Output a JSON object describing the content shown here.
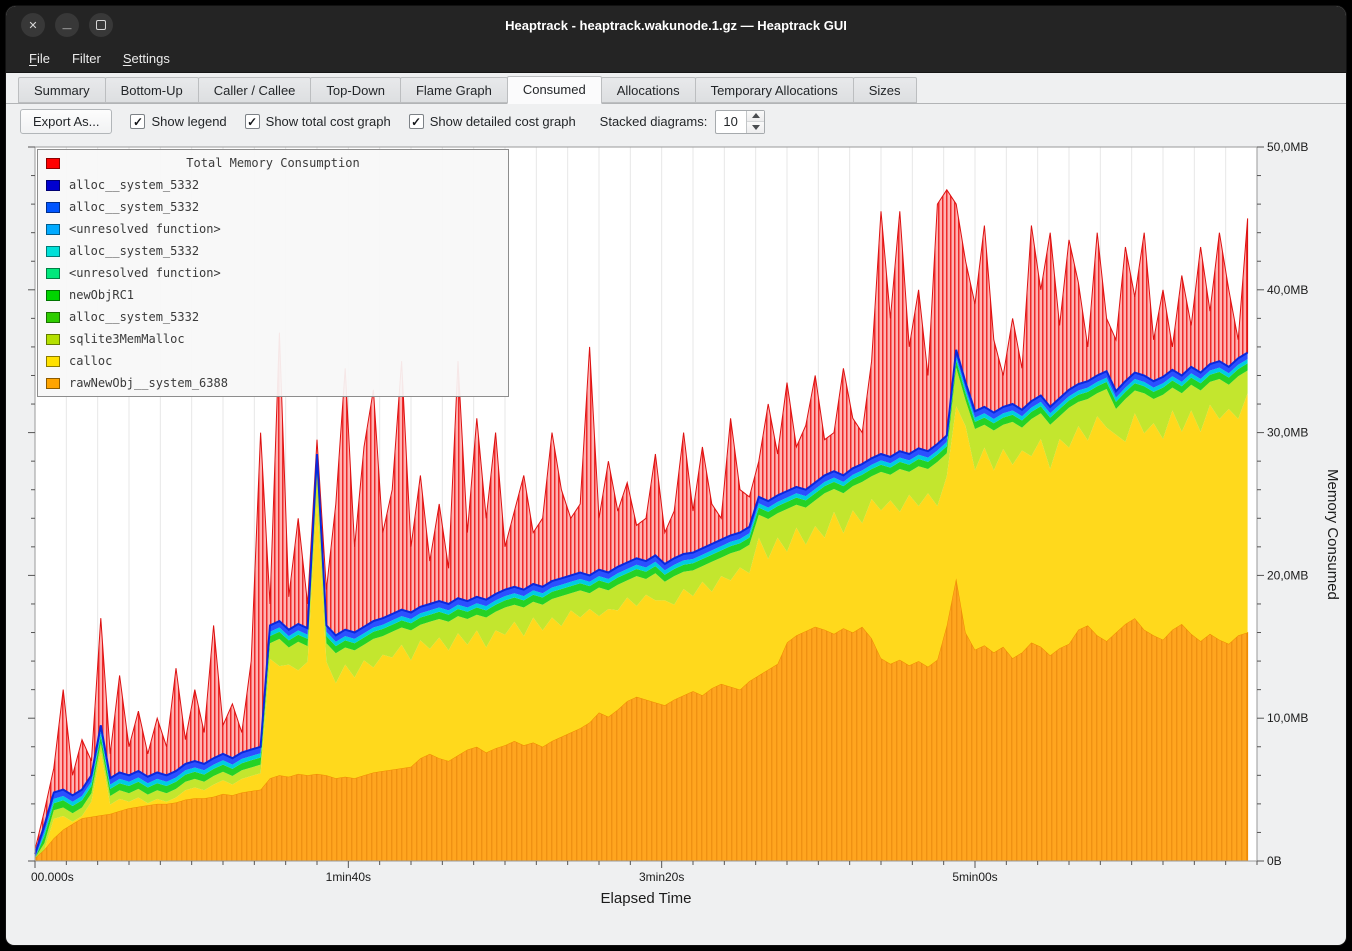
{
  "window": {
    "title": "Heaptrack - heaptrack.wakunode.1.gz — Heaptrack GUI"
  },
  "menubar": {
    "items": [
      {
        "label": "File",
        "underline": 0
      },
      {
        "label": "Filter",
        "underline": -1
      },
      {
        "label": "Settings",
        "underline": 0
      }
    ]
  },
  "tabs": {
    "active": "Consumed",
    "items": [
      "Summary",
      "Bottom-Up",
      "Caller / Callee",
      "Top-Down",
      "Flame Graph",
      "Consumed",
      "Allocations",
      "Temporary Allocations",
      "Sizes"
    ]
  },
  "toolbar": {
    "export_label": "Export As...",
    "checkboxes": [
      {
        "label": "Show legend",
        "checked": true
      },
      {
        "label": "Show total cost graph",
        "checked": true
      },
      {
        "label": "Show detailed cost graph",
        "checked": true
      }
    ],
    "stacked_label": "Stacked diagrams:",
    "stacked_value": "10"
  },
  "chart_data": {
    "type": "area",
    "title": "Total Memory Consumption",
    "xlabel": "Elapsed Time",
    "ylabel": "Memory Consumed",
    "x_range": [
      0,
      390
    ],
    "y_range": [
      0,
      50
    ],
    "x_ticks": [
      {
        "t": 0,
        "label": "00.000s"
      },
      {
        "t": 100,
        "label": "1min40s"
      },
      {
        "t": 200,
        "label": "3min20s"
      },
      {
        "t": 300,
        "label": "5min00s"
      }
    ],
    "y_ticks": [
      {
        "v": 0,
        "label": "0B"
      },
      {
        "v": 10,
        "label": "10,0MB"
      },
      {
        "v": 20,
        "label": "20,0MB"
      },
      {
        "v": 30,
        "label": "30,0MB"
      },
      {
        "v": 40,
        "label": "40,0MB"
      },
      {
        "v": 50,
        "label": "50,0MB"
      }
    ],
    "legend": [
      {
        "color": "#ff0000",
        "label": "Total Memory Consumption"
      },
      {
        "color": "#0000d0",
        "label": "alloc__system_5332"
      },
      {
        "color": "#0055ff",
        "label": "alloc__system_5332"
      },
      {
        "color": "#00aaff",
        "label": "<unresolved function>"
      },
      {
        "color": "#00e0d8",
        "label": "alloc__system_5332"
      },
      {
        "color": "#00e87c",
        "label": "<unresolved function>"
      },
      {
        "color": "#00d400",
        "label": "newObjRC1"
      },
      {
        "color": "#2ecc00",
        "label": "alloc__system_5332"
      },
      {
        "color": "#b4e000",
        "label": "sqlite3MemMalloc"
      },
      {
        "color": "#ffe100",
        "label": "calloc"
      },
      {
        "color": "#ffa400",
        "label": "rawNewObj__system_6388"
      }
    ],
    "colors": {
      "orange": "#ffa51e",
      "orange_stripe": "#f09112",
      "orange_edge": "#ef8b00",
      "yellow": "#ffd91c",
      "ygreen": "#c3e62e",
      "green": "#25d225",
      "cyan": "#00cde0",
      "blue": "#2b50ff",
      "blue_edge": "#0a28dc",
      "red_base": "#ffb2b2",
      "red_stripe": "#ee2a2a",
      "red_edge": "#dd1111",
      "grid": "#e7e7e7",
      "axis": "#555555"
    },
    "x": [
      0,
      3,
      6,
      9,
      12,
      15,
      18,
      21,
      24,
      27,
      30,
      33,
      36,
      39,
      42,
      45,
      48,
      51,
      54,
      57,
      60,
      63,
      66,
      69,
      72,
      75,
      78,
      81,
      84,
      87,
      90,
      93,
      96,
      99,
      102,
      105,
      108,
      111,
      114,
      117,
      120,
      123,
      126,
      129,
      132,
      135,
      138,
      141,
      144,
      147,
      150,
      153,
      156,
      159,
      162,
      165,
      168,
      171,
      174,
      177,
      180,
      183,
      186,
      189,
      192,
      195,
      198,
      201,
      204,
      207,
      210,
      213,
      216,
      219,
      222,
      225,
      228,
      231,
      234,
      237,
      240,
      243,
      246,
      249,
      252,
      255,
      258,
      261,
      264,
      267,
      270,
      273,
      276,
      279,
      282,
      285,
      288,
      291,
      294,
      297,
      300,
      303,
      306,
      309,
      312,
      315,
      318,
      321,
      324,
      327,
      330,
      333,
      336,
      339,
      342,
      345,
      348,
      351,
      354,
      357,
      360,
      363,
      366,
      369,
      372,
      375,
      378,
      381,
      384,
      387
    ],
    "series": {
      "band_thickness": {
        "blue": 0.45,
        "cyan": 0.3,
        "green": 0.5
      },
      "total": [
        0.8,
        3.5,
        6.5,
        12.0,
        6.0,
        8.5,
        7.0,
        17.0,
        7.5,
        13.0,
        8.0,
        10.5,
        7.5,
        10.0,
        8.0,
        13.5,
        8.5,
        12.0,
        9.0,
        16.5,
        9.5,
        11.0,
        9.0,
        14.0,
        30.0,
        18.0,
        37.0,
        18.5,
        24.0,
        18.0,
        29.5,
        19.0,
        25.0,
        34.5,
        22.0,
        29.0,
        33.0,
        23.0,
        26.0,
        35.0,
        22.0,
        27.0,
        21.0,
        25.0,
        20.5,
        35.0,
        23.0,
        31.0,
        24.0,
        30.0,
        22.0,
        24.5,
        27.0,
        23.0,
        24.0,
        30.0,
        26.0,
        24.0,
        25.0,
        36.0,
        24.0,
        28.0,
        24.5,
        26.5,
        23.5,
        24.0,
        28.5,
        23.0,
        24.5,
        30.0,
        24.5,
        29.0,
        25.0,
        24.0,
        31.0,
        26.0,
        25.5,
        28.0,
        32.0,
        28.5,
        33.5,
        29.0,
        30.5,
        34.0,
        29.5,
        30.0,
        34.5,
        31.0,
        30.0,
        35.0,
        45.5,
        38.0,
        45.5,
        36.0,
        40.0,
        34.0,
        46.0,
        47.0,
        46.0,
        42.0,
        39.0,
        44.5,
        36.5,
        34.0,
        38.0,
        34.5,
        44.5,
        40.0,
        44.0,
        37.5,
        43.5,
        40.5,
        36.0,
        44.0,
        38.0,
        36.5,
        43.0,
        39.5,
        44.0,
        36.5,
        40.0,
        36.0,
        41.0,
        37.5,
        43.0,
        38.5,
        44.0,
        40.0,
        36.5,
        45.0
      ],
      "solid_top": [
        0.5,
        2.5,
        4.8,
        5.0,
        4.6,
        5.0,
        6.0,
        9.5,
        5.8,
        6.2,
        6.0,
        6.3,
        5.9,
        6.2,
        6.0,
        6.3,
        6.8,
        7.0,
        6.8,
        7.2,
        7.5,
        7.2,
        7.6,
        7.8,
        8.0,
        16.5,
        16.8,
        16.2,
        16.6,
        16.3,
        28.5,
        16.5,
        15.8,
        16.2,
        16.0,
        16.4,
        16.8,
        17.0,
        17.3,
        17.6,
        17.4,
        17.8,
        18.0,
        18.2,
        18.0,
        18.4,
        18.2,
        18.5,
        18.3,
        18.7,
        19.0,
        19.2,
        19.0,
        19.4,
        19.2,
        19.6,
        19.8,
        20.0,
        20.2,
        20.0,
        20.4,
        20.2,
        20.6,
        20.9,
        21.2,
        21.0,
        21.4,
        20.8,
        21.2,
        21.5,
        21.6,
        21.9,
        22.2,
        22.5,
        22.8,
        23.0,
        23.4,
        25.5,
        25.2,
        25.6,
        25.9,
        26.2,
        26.0,
        26.5,
        27.0,
        27.3,
        27.0,
        27.5,
        27.8,
        28.2,
        28.5,
        28.3,
        28.7,
        28.5,
        28.9,
        28.7,
        29.2,
        29.8,
        35.8,
        33.5,
        31.5,
        31.8,
        31.4,
        31.8,
        32.0,
        31.6,
        32.2,
        32.6,
        31.8,
        32.4,
        33.0,
        33.4,
        33.6,
        34.0,
        34.3,
        32.9,
        33.6,
        34.2,
        34.0,
        33.6,
        33.9,
        34.4,
        34.0,
        34.6,
        34.2,
        34.8,
        35.0,
        34.6,
        35.2,
        35.6
      ],
      "orange_top": [
        0.2,
        0.8,
        1.6,
        2.2,
        2.6,
        3.0,
        3.1,
        3.2,
        3.3,
        3.5,
        3.7,
        3.8,
        3.9,
        4.0,
        4.0,
        4.1,
        4.3,
        4.4,
        4.4,
        4.5,
        4.7,
        4.6,
        4.8,
        4.9,
        5.0,
        5.8,
        6.0,
        5.9,
        6.1,
        6.0,
        6.1,
        6.0,
        5.8,
        5.9,
        5.8,
        6.0,
        6.2,
        6.3,
        6.4,
        6.5,
        6.6,
        7.2,
        7.5,
        7.2,
        7.0,
        7.4,
        7.8,
        8.0,
        7.6,
        7.9,
        8.1,
        8.4,
        8.1,
        8.3,
        8.0,
        8.4,
        8.7,
        9.0,
        9.3,
        9.7,
        10.4,
        10.1,
        10.6,
        11.2,
        11.5,
        11.3,
        11.1,
        10.9,
        11.3,
        11.6,
        11.9,
        11.6,
        12.1,
        12.4,
        12.2,
        12.0,
        12.6,
        13.0,
        13.4,
        13.8,
        15.3,
        15.8,
        16.1,
        16.4,
        16.2,
        15.9,
        16.3,
        16.0,
        16.4,
        15.6,
        14.2,
        13.8,
        14.1,
        13.7,
        14.0,
        13.6,
        14.1,
        16.5,
        19.8,
        16.0,
        14.8,
        15.1,
        14.6,
        15.0,
        14.2,
        14.6,
        15.3,
        15.0,
        14.4,
        14.9,
        15.2,
        16.2,
        16.5,
        15.8,
        15.4,
        16.0,
        16.6,
        17.0,
        16.2,
        15.8,
        15.5,
        16.2,
        16.6,
        15.9,
        15.4,
        15.9,
        15.5,
        15.2,
        15.8,
        16.0
      ],
      "ygreen_band": [
        0.6,
        0.6,
        0.6,
        0.6,
        0.6,
        0.6,
        0.6,
        0.6,
        0.6,
        0.6,
        0.6,
        0.6,
        0.6,
        0.6,
        0.6,
        0.6,
        0.6,
        0.6,
        0.6,
        0.6,
        0.6,
        0.6,
        0.6,
        0.6,
        0.6,
        1.1,
        1.9,
        1.2,
        2.0,
        1.1,
        1.8,
        1.3,
        2.1,
        1.2,
        1.9,
        1.1,
        2.0,
        1.3,
        1.8,
        1.2,
        2.1,
        1.1,
        1.9,
        1.3,
        2.0,
        1.2,
        1.8,
        1.1,
        2.1,
        1.3,
        1.9,
        1.2,
        2.0,
        1.1,
        1.8,
        1.3,
        2.1,
        1.2,
        1.9,
        1.1,
        2.0,
        1.3,
        1.8,
        1.2,
        2.1,
        1.1,
        1.9,
        1.3,
        2.0,
        1.2,
        1.8,
        1.1,
        2.1,
        1.3,
        1.9,
        1.2,
        2.0,
        1.6,
        2.8,
        1.7,
        3.0,
        1.6,
        2.6,
        1.8,
        3.1,
        1.6,
        2.8,
        1.7,
        2.9,
        1.6,
        2.7,
        1.8,
        3.0,
        1.6,
        2.8,
        1.7,
        3.1,
        1.6,
        2.7,
        1.8,
        2.9,
        1.6,
        2.8,
        1.7,
        3.0,
        1.6,
        2.6,
        1.8,
        3.1,
        1.6,
        2.8,
        1.7,
        2.9,
        1.6,
        2.7,
        1.8,
        3.0,
        1.6,
        2.8,
        1.7,
        3.1,
        1.6,
        2.7,
        1.8,
        2.9,
        1.6,
        2.8,
        1.7,
        3.0,
        1.6
      ]
    }
  }
}
